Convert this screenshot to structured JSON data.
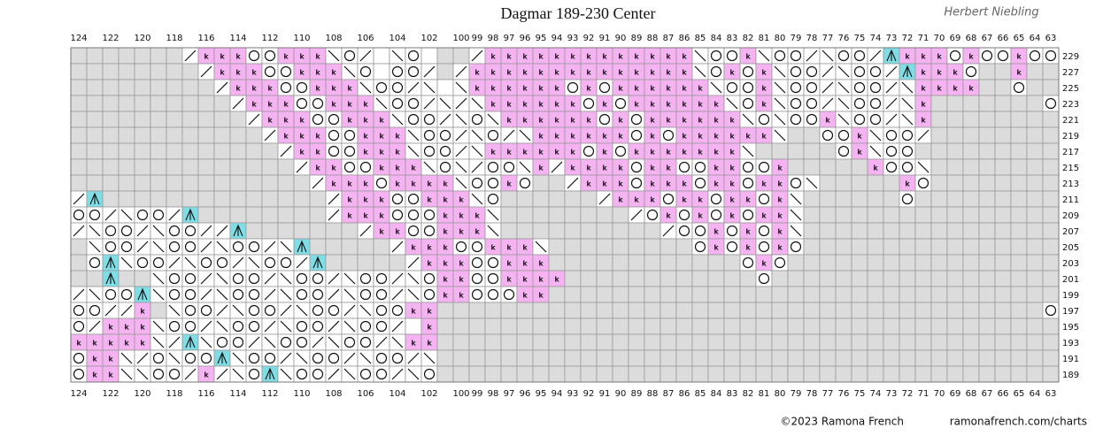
{
  "title": "Dagmar 189-230 Center",
  "signature": "Herbert Niebling",
  "footer": {
    "copyright": "©2023 Ramona French",
    "url": "ramonafrench.com/charts"
  },
  "columns": [
    124,
    null,
    122,
    null,
    120,
    null,
    118,
    null,
    116,
    null,
    114,
    null,
    112,
    null,
    110,
    null,
    108,
    null,
    106,
    null,
    104,
    null,
    102,
    null,
    100,
    99,
    98,
    97,
    96,
    95,
    94,
    93,
    92,
    91,
    90,
    89,
    88,
    87,
    86,
    85,
    84,
    83,
    82,
    81,
    80,
    79,
    78,
    77,
    76,
    75,
    74,
    73,
    72,
    71,
    70,
    69,
    68,
    67,
    66,
    65,
    64,
    63
  ],
  "rows": [
    {
      "label": 229,
      "cells": ".......skkkookkkbos-bo-..skkkkkkkkkkkkkbookboosboos^kkkokookoo"
    },
    {
      "label": 227,
      "cells": "........skkkookkkbo-oos.skkkkkkkkkkkkkkbokokboosboos^kkko..k.."
    },
    {
      "label": 225,
      "cells": ".........skkkookkkboosb-bkkkkkkokokkkkkkbookboosboosbkkkk..o.."
    },
    {
      "label": 223,
      "cells": "..........skkkookkkboosbsbkkkkkkokokkkkkkbokboosboosbk.......o"
    },
    {
      "label": 221,
      "cells": "...........skkkookkkboosbobkkkkkkokokkkkkkbobookboosbk........"
    },
    {
      "label": 219,
      "cells": "............skkkookkkboosbosbkkkkkkokokkkkkkb..ookboos........"
    },
    {
      "label": 217,
      "cells": ".............skkookkkboosbkkkkkkokokkkkkkkb.....okboo........"
    },
    {
      "label": 215,
      "cells": "..............skkookkkbobsoobkskkkkokkookkook.....koob........"
    },
    {
      "label": 213,
      "cells": "...............skkkokkkkbooko..skkkokkkokkokkob.....ko........"
    },
    {
      "label": 211,
      "cells": "s^..............skkkookkkbo......skkkokkokkokb......o........."
    },
    {
      "label": 209,
      "cells": "oosboos^........skkkoookkkb........sokokokokkb................"
    },
    {
      "label": 207,
      "cells": "sboosbooss^.......skkookkkb..........sookokokb................"
    },
    {
      "label": 205,
      "cells": ".boosboosboosb^.....skkkookkkb.........okokoko................"
    },
    {
      "label": 203,
      "cells": ".o^boosboosboos^.....skkkookkk............oko................."
    },
    {
      "label": 201,
      "cells": "..^..boosboosboosboosbokkookkkk............o.................."
    },
    {
      "label": 199,
      "cells": "sboo^boosboosboosboosbokkoookk................................"
    },
    {
      "label": 197,
      "cells": "oossk.boosboosboosbookk......................................o"
    },
    {
      "label": 195,
      "cells": "oskkkboosboosboosboos-k......................................."
    },
    {
      "label": 193,
      "cells": "kkkkkbs^boosboosboosbkk......................................."
    },
    {
      "label": 191,
      "cells": "okkbsoboo^boosboosboosb......................................."
    },
    {
      "label": 189,
      "cells": "okkbboosksbo^boosboosbo......................................."
    }
  ]
}
